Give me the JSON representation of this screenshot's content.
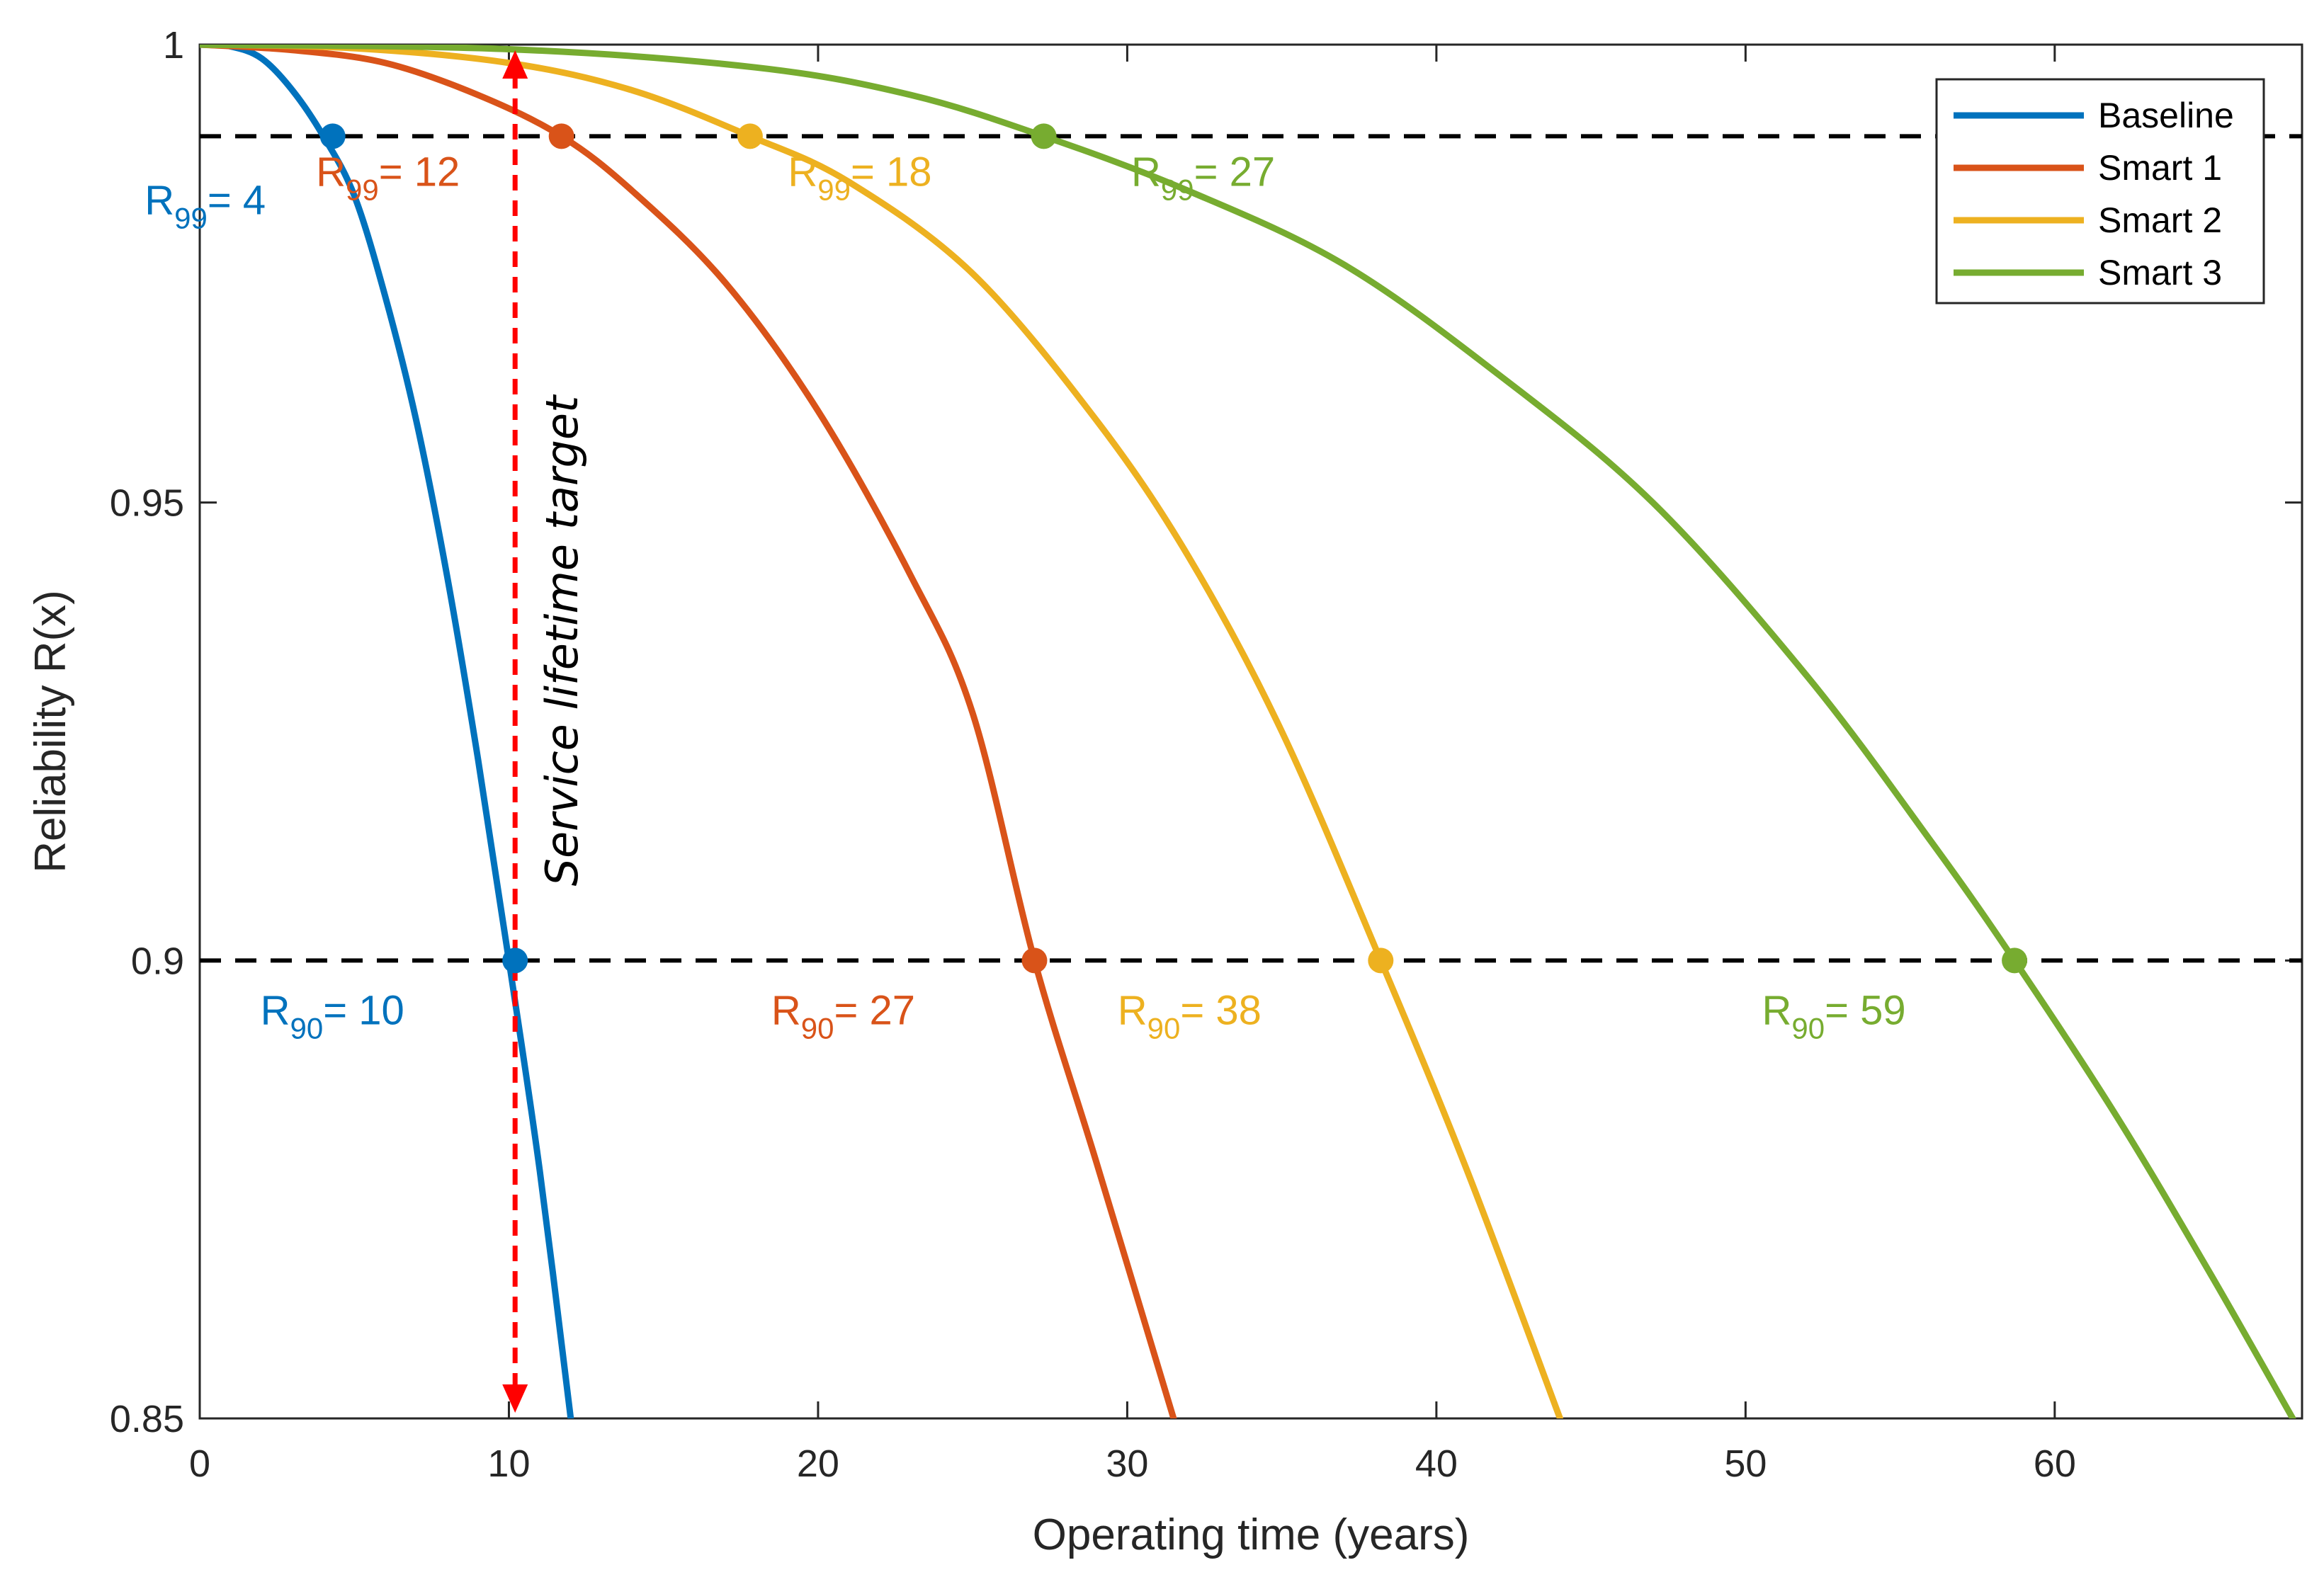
{
  "chart_data": {
    "type": "line",
    "title": "",
    "xlabel": "Operating time (years)",
    "ylabel": "Reliability R(x)",
    "xlim": [
      0,
      68
    ],
    "ylim": [
      0.85,
      1
    ],
    "xticks": [
      0,
      10,
      20,
      30,
      40,
      50,
      60
    ],
    "xtick_labels": [
      "0",
      "10",
      "20",
      "30",
      "40",
      "50",
      "60"
    ],
    "yticks": [
      0.85,
      0.9,
      0.95,
      1
    ],
    "ytick_labels": [
      "0.85",
      "0.9",
      "0.95",
      "1"
    ],
    "grid": false,
    "legend_position": "top-right",
    "reference_lines": [
      {
        "y": 0.99,
        "style": "dashed",
        "color": "#000000"
      },
      {
        "y": 0.9,
        "style": "dashed",
        "color": "#000000"
      }
    ],
    "series": [
      {
        "name": "Baseline",
        "color": "#0072BD",
        "points": [
          [
            0,
            1
          ],
          [
            1,
            0.9998
          ],
          [
            2,
            0.9985
          ],
          [
            3,
            0.995
          ],
          [
            4,
            0.99
          ],
          [
            5,
            0.9835
          ],
          [
            6,
            0.9725
          ],
          [
            7,
            0.959
          ],
          [
            8,
            0.942
          ],
          [
            9,
            0.922
          ],
          [
            10,
            0.9
          ],
          [
            11,
            0.877
          ],
          [
            12,
            0.85
          ]
        ],
        "markers": [
          {
            "x": 4.3,
            "y": 0.99,
            "label_main": "R",
            "label_sub": "99",
            "label_value": "= 4"
          },
          {
            "x": 10.2,
            "y": 0.9,
            "label_main": "R",
            "label_sub": "90",
            "label_value": "= 10"
          }
        ]
      },
      {
        "name": "Smart 1",
        "color": "#D95319",
        "points": [
          [
            0,
            1
          ],
          [
            3,
            0.9994
          ],
          [
            6,
            0.998
          ],
          [
            9,
            0.9945
          ],
          [
            11.7,
            0.99
          ],
          [
            14,
            0.984
          ],
          [
            17,
            0.974
          ],
          [
            20,
            0.96
          ],
          [
            23,
            0.942
          ],
          [
            25,
            0.927
          ],
          [
            27,
            0.9
          ],
          [
            29,
            0.878
          ],
          [
            31.5,
            0.85
          ]
        ],
        "markers": [
          {
            "x": 11.7,
            "y": 0.99,
            "label_main": "R",
            "label_sub": "99",
            "label_value": "= 12"
          },
          {
            "x": 27,
            "y": 0.9,
            "label_main": "R",
            "label_sub": "90",
            "label_value": "= 27"
          }
        ]
      },
      {
        "name": "Smart 2",
        "color": "#EDB120",
        "points": [
          [
            0,
            1
          ],
          [
            5,
            0.9996
          ],
          [
            10,
            0.998
          ],
          [
            14,
            0.995
          ],
          [
            17.8,
            0.99
          ],
          [
            21,
            0.985
          ],
          [
            25,
            0.975
          ],
          [
            29,
            0.959
          ],
          [
            32,
            0.944
          ],
          [
            35,
            0.925
          ],
          [
            38.2,
            0.9
          ],
          [
            41,
            0.877
          ],
          [
            44,
            0.85
          ]
        ],
        "markers": [
          {
            "x": 17.8,
            "y": 0.99,
            "label_main": "R",
            "label_sub": "99",
            "label_value": "= 18"
          },
          {
            "x": 38.2,
            "y": 0.9,
            "label_main": "R",
            "label_sub": "90",
            "label_value": "= 38"
          }
        ]
      },
      {
        "name": "Smart 3",
        "color": "#77AC30",
        "points": [
          [
            0,
            1
          ],
          [
            10,
            0.9995
          ],
          [
            18,
            0.9975
          ],
          [
            23,
            0.9945
          ],
          [
            27.3,
            0.99
          ],
          [
            32,
            0.984
          ],
          [
            37,
            0.976
          ],
          [
            42,
            0.964
          ],
          [
            47,
            0.95
          ],
          [
            52,
            0.931
          ],
          [
            56,
            0.913
          ],
          [
            58.7,
            0.9
          ],
          [
            62,
            0.883
          ],
          [
            65,
            0.866
          ],
          [
            67.7,
            0.85
          ]
        ],
        "markers": [
          {
            "x": 27.3,
            "y": 0.99,
            "label_main": "R",
            "label_sub": "99",
            "label_value": "= 27"
          },
          {
            "x": 58.7,
            "y": 0.9,
            "label_main": "R",
            "label_sub": "90",
            "label_value": "= 59"
          }
        ]
      }
    ],
    "annotation": {
      "text": "Service lifetime target",
      "x": 10.2,
      "y_from": 0.85,
      "y_to": 1,
      "color": "#FF0000"
    }
  }
}
